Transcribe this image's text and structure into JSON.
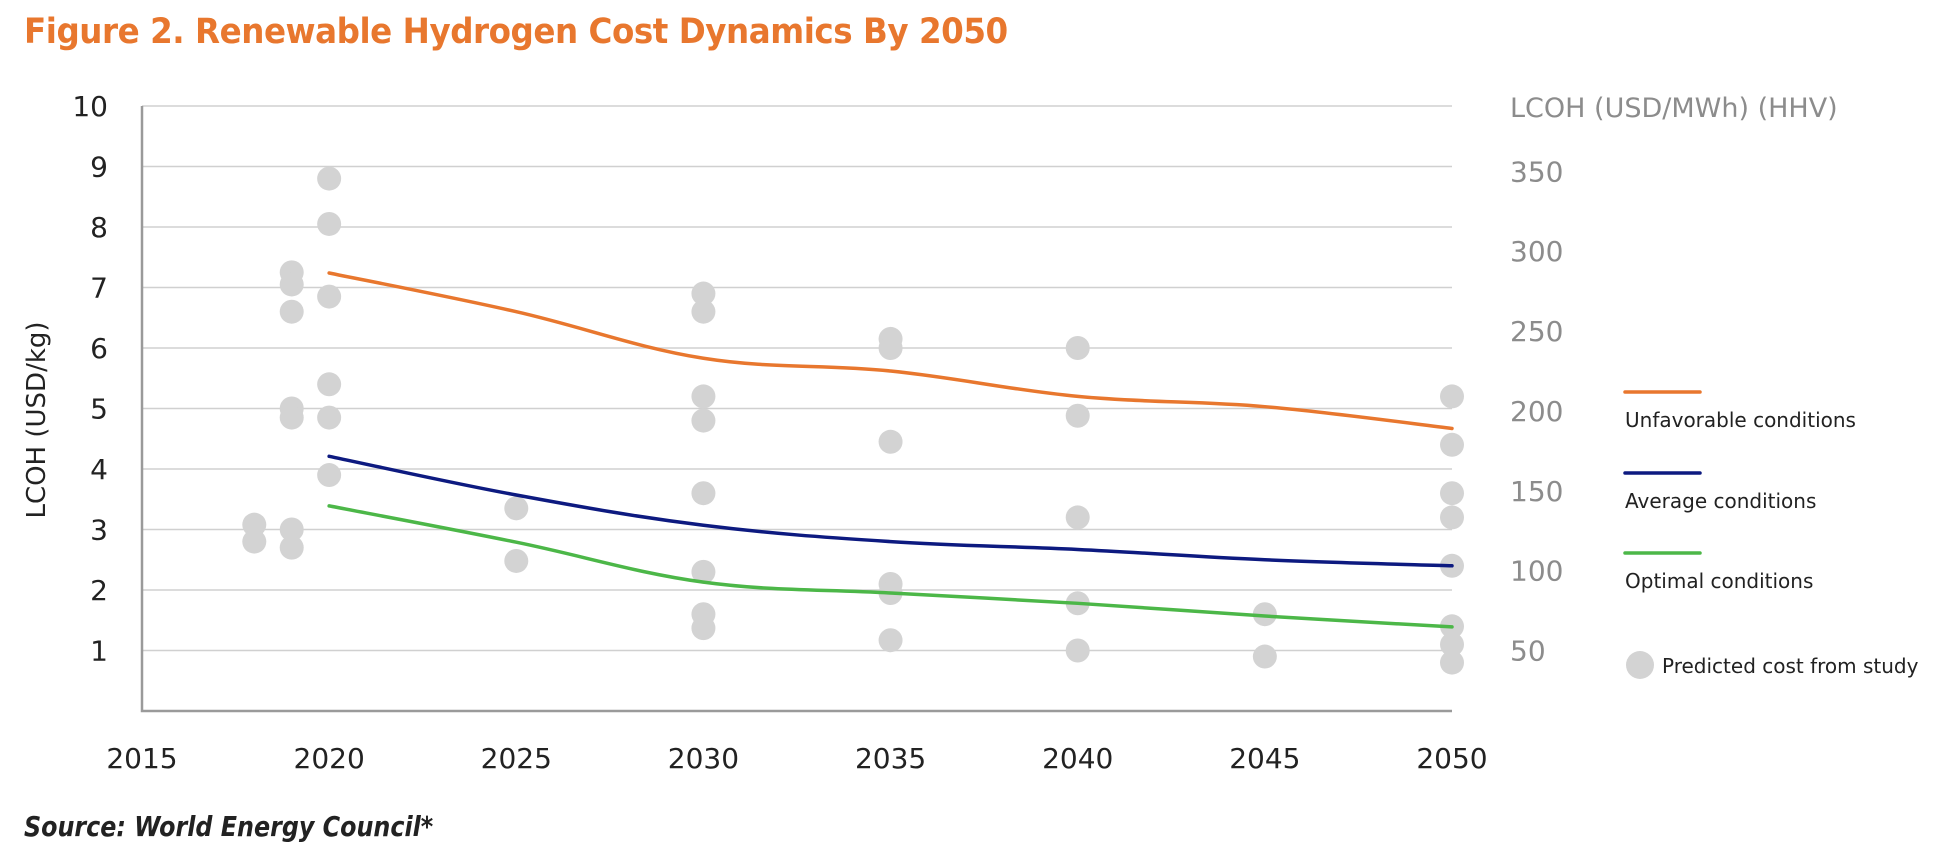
{
  "title": "Figure 2. Renewable Hydrogen Cost Dynamics By 2050",
  "source": "Source: World Energy Council*",
  "colors": {
    "title": "#e8772e",
    "unfavorable": "#e8772e",
    "average": "#0d1a80",
    "optimal": "#4cb748",
    "study_points": "#d3d3d3",
    "grid": "#d0d0d0",
    "right_axis_text": "#8c8c8c"
  },
  "chart_data": {
    "type": "line",
    "title": "Figure 2. Renewable Hydrogen Cost Dynamics By 2050",
    "xlabel": "",
    "ylabel": "LCOH (USD/kg)",
    "y2label": "LCOH (USD/MWh) (HHV)",
    "xlim": [
      2015,
      2050
    ],
    "ylim": [
      0,
      10
    ],
    "x_ticks": [
      "2015",
      "2020",
      "2025",
      "2030",
      "2035",
      "2040",
      "2045",
      "2050"
    ],
    "y_ticks": [
      "1",
      "2",
      "3",
      "4",
      "5",
      "6",
      "7",
      "8",
      "9",
      "10"
    ],
    "y2_ticks": [
      {
        "label": "50",
        "value_usd_kg": 1.0
      },
      {
        "label": "100",
        "value_usd_kg": 2.32
      },
      {
        "label": "150",
        "value_usd_kg": 3.64
      },
      {
        "label": "200",
        "value_usd_kg": 4.96
      },
      {
        "label": "250",
        "value_usd_kg": 6.28
      },
      {
        "label": "300",
        "value_usd_kg": 7.6
      },
      {
        "label": "350",
        "value_usd_kg": 8.92
      }
    ],
    "grid": true,
    "legend_position": "right",
    "x": [
      2020,
      2025,
      2030,
      2035,
      2040,
      2045,
      2050
    ],
    "series": [
      {
        "name": "Unfavorable conditions",
        "key": "unfavorable",
        "values": [
          7.24,
          6.6,
          5.83,
          5.62,
          5.2,
          5.03,
          4.67
        ]
      },
      {
        "name": "Average conditions",
        "key": "average",
        "values": [
          4.21,
          3.57,
          3.07,
          2.8,
          2.67,
          2.5,
          2.4
        ]
      },
      {
        "name": "Optimal conditions",
        "key": "optimal",
        "values": [
          3.39,
          2.79,
          2.13,
          1.95,
          1.78,
          1.57,
          1.39
        ]
      }
    ],
    "scatter": {
      "name": "Predicted cost from study",
      "points": [
        [
          2018,
          3.08
        ],
        [
          2018,
          2.8
        ],
        [
          2019,
          7.25
        ],
        [
          2019,
          7.05
        ],
        [
          2019,
          6.6
        ],
        [
          2019,
          5.0
        ],
        [
          2019,
          4.85
        ],
        [
          2019,
          3.0
        ],
        [
          2019,
          2.7
        ],
        [
          2020,
          8.8
        ],
        [
          2020,
          8.05
        ],
        [
          2020,
          6.85
        ],
        [
          2020,
          5.4
        ],
        [
          2020,
          4.85
        ],
        [
          2020,
          3.9
        ],
        [
          2025,
          3.35
        ],
        [
          2025,
          2.48
        ],
        [
          2030,
          6.9
        ],
        [
          2030,
          6.6
        ],
        [
          2030,
          5.2
        ],
        [
          2030,
          4.8
        ],
        [
          2030,
          3.6
        ],
        [
          2030,
          2.3
        ],
        [
          2030,
          1.6
        ],
        [
          2030,
          1.37
        ],
        [
          2035,
          6.15
        ],
        [
          2035,
          6.0
        ],
        [
          2035,
          4.45
        ],
        [
          2035,
          2.1
        ],
        [
          2035,
          1.95
        ],
        [
          2035,
          1.17
        ],
        [
          2040,
          6.0
        ],
        [
          2040,
          4.88
        ],
        [
          2040,
          3.2
        ],
        [
          2040,
          1.78
        ],
        [
          2040,
          1.0
        ],
        [
          2045,
          1.6
        ],
        [
          2045,
          0.9
        ],
        [
          2050,
          5.2
        ],
        [
          2050,
          4.4
        ],
        [
          2050,
          3.6
        ],
        [
          2050,
          3.2
        ],
        [
          2050,
          2.4
        ],
        [
          2050,
          1.4
        ],
        [
          2050,
          1.1
        ],
        [
          2050,
          0.8
        ]
      ]
    }
  },
  "legend": {
    "items": [
      {
        "label": "Unfavorable conditions",
        "type": "line",
        "key": "unfavorable"
      },
      {
        "label": "Average conditions",
        "type": "line",
        "key": "average"
      },
      {
        "label": "Optimal conditions",
        "type": "line",
        "key": "optimal"
      },
      {
        "label": "Predicted cost from study",
        "type": "dot",
        "key": "study_points"
      }
    ]
  }
}
